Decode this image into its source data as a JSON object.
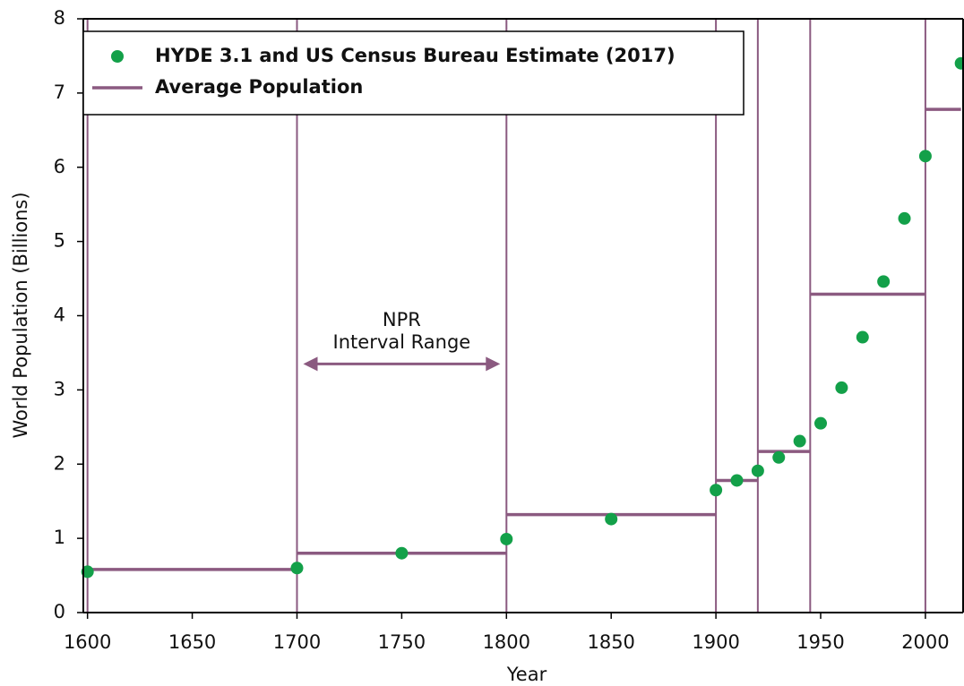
{
  "chart_data": {
    "type": "scatter-step",
    "x_label": "Year",
    "y_label": "World Population (Billions)",
    "series": [
      {
        "name": "HYDE 3.1 and US Census Bureau Estimate (2017)",
        "color": "#13a049",
        "x": [
          1600,
          1700,
          1750,
          1800,
          1850,
          1900,
          1910,
          1920,
          1930,
          1940,
          1950,
          1960,
          1970,
          1980,
          1990,
          2000,
          2017
        ],
        "values": [
          0.55,
          0.6,
          0.8,
          0.99,
          1.26,
          1.65,
          1.78,
          1.91,
          2.09,
          2.31,
          2.55,
          3.03,
          3.71,
          4.46,
          5.31,
          6.15,
          7.4
        ]
      },
      {
        "name": "Average Population",
        "color": "#8b5a80",
        "starts": [
          1600,
          1700,
          1800,
          1900,
          1920,
          1945,
          2000
        ],
        "ends": [
          1700,
          1800,
          1900,
          1920,
          1945,
          2000,
          2017
        ],
        "values": [
          0.58,
          0.8,
          1.32,
          1.78,
          2.17,
          4.29,
          6.78
        ]
      }
    ],
    "annotation": {
      "lines": [
        "NPR",
        "Interval Range"
      ],
      "x": [
        1703,
        1797
      ],
      "y": 3.35
    },
    "xlim": [
      1598,
      2018
    ],
    "xticks": [
      1600,
      1650,
      1700,
      1750,
      1800,
      1850,
      1900,
      1950,
      2000
    ],
    "ylim": [
      0,
      8
    ],
    "yticks": [
      0,
      1,
      2,
      3,
      4,
      5,
      6,
      7,
      8
    ],
    "legend": "upper left"
  }
}
